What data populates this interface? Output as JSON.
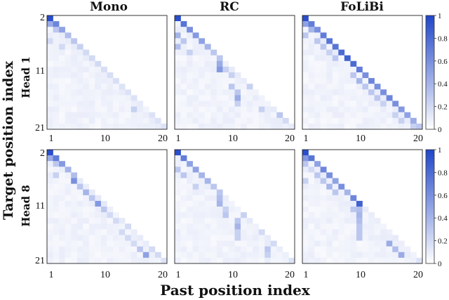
{
  "chart_data": {
    "type": "heatmap",
    "columns": [
      "Mono",
      "RC",
      "FoLiBi"
    ],
    "rows": [
      "Head 1",
      "Head 8"
    ],
    "ylabel": "Target position index",
    "xlabel": "Past position index",
    "x_ticks": [
      "1",
      "10",
      "20"
    ],
    "y_ticks": [
      "2",
      "11",
      "21"
    ],
    "x_range": [
      1,
      20
    ],
    "y_range": [
      2,
      21
    ],
    "colorbar": {
      "range": [
        0,
        1
      ],
      "ticks": [
        "0",
        "0.2",
        "0.4",
        "0.6",
        "0.8",
        "1"
      ],
      "low_color": "#ffffff",
      "high_color": "#1f45c8"
    },
    "grid": false,
    "lower_triangular": true,
    "panels": [
      {
        "row": "Head 1",
        "col": "Mono",
        "highlights": [
          [
            2,
            1,
            0.95
          ],
          [
            3,
            1,
            0.45
          ],
          [
            3,
            2,
            0.65
          ],
          [
            4,
            2,
            0.3
          ],
          [
            4,
            3,
            0.5
          ],
          [
            5,
            4,
            0.35
          ],
          [
            6,
            1,
            0.2
          ],
          [
            6,
            5,
            0.3
          ],
          [
            7,
            3,
            0.2
          ],
          [
            7,
            6,
            0.25
          ],
          [
            8,
            7,
            0.2
          ],
          [
            9,
            8,
            0.2
          ],
          [
            10,
            9,
            0.2
          ],
          [
            11,
            10,
            0.18
          ],
          [
            12,
            11,
            0.18
          ],
          [
            13,
            12,
            0.18
          ],
          [
            14,
            13,
            0.15
          ],
          [
            15,
            14,
            0.15
          ],
          [
            16,
            15,
            0.15
          ],
          [
            18,
            15,
            0.25
          ],
          [
            19,
            18,
            0.15
          ],
          [
            20,
            19,
            0.15
          ],
          [
            21,
            20,
            0.15
          ]
        ]
      },
      {
        "row": "Head 1",
        "col": "RC",
        "highlights": [
          [
            2,
            1,
            0.95
          ],
          [
            3,
            2,
            0.75
          ],
          [
            4,
            3,
            0.6
          ],
          [
            5,
            1,
            0.4
          ],
          [
            5,
            4,
            0.55
          ],
          [
            6,
            2,
            0.3
          ],
          [
            6,
            5,
            0.5
          ],
          [
            7,
            1,
            0.35
          ],
          [
            7,
            6,
            0.4
          ],
          [
            8,
            3,
            0.25
          ],
          [
            8,
            7,
            0.3
          ],
          [
            9,
            8,
            0.3
          ],
          [
            10,
            8,
            0.45
          ],
          [
            11,
            8,
            0.55
          ],
          [
            11,
            9,
            0.25
          ],
          [
            12,
            10,
            0.25
          ],
          [
            14,
            10,
            0.3
          ],
          [
            14,
            13,
            0.25
          ],
          [
            15,
            11,
            0.3
          ],
          [
            16,
            11,
            0.45
          ],
          [
            17,
            11,
            0.25
          ],
          [
            18,
            15,
            0.25
          ],
          [
            19,
            18,
            0.3
          ],
          [
            20,
            19,
            0.2
          ]
        ]
      },
      {
        "row": "Head 1",
        "col": "FoLiBi",
        "highlights": [
          [
            2,
            1,
            0.95
          ],
          [
            3,
            1,
            0.5
          ],
          [
            3,
            2,
            0.7
          ],
          [
            4,
            2,
            0.4
          ],
          [
            4,
            3,
            0.6
          ],
          [
            5,
            1,
            0.3
          ],
          [
            5,
            4,
            0.7
          ],
          [
            6,
            3,
            0.3
          ],
          [
            6,
            5,
            0.75
          ],
          [
            7,
            4,
            0.3
          ],
          [
            7,
            6,
            0.75
          ],
          [
            8,
            5,
            0.25
          ],
          [
            8,
            7,
            0.8
          ],
          [
            9,
            6,
            0.3
          ],
          [
            9,
            8,
            0.85
          ],
          [
            10,
            9,
            0.8
          ],
          [
            11,
            10,
            0.7
          ],
          [
            12,
            9,
            0.3
          ],
          [
            12,
            11,
            0.6
          ],
          [
            13,
            10,
            0.4
          ],
          [
            13,
            12,
            0.65
          ],
          [
            14,
            11,
            0.3
          ],
          [
            14,
            13,
            0.6
          ],
          [
            15,
            12,
            0.3
          ],
          [
            15,
            14,
            0.6
          ],
          [
            16,
            13,
            0.3
          ],
          [
            16,
            15,
            0.65
          ],
          [
            17,
            14,
            0.25
          ],
          [
            17,
            16,
            0.6
          ],
          [
            18,
            17,
            0.55
          ],
          [
            19,
            16,
            0.25
          ],
          [
            19,
            18,
            0.5
          ],
          [
            20,
            17,
            0.25
          ],
          [
            20,
            19,
            0.45
          ],
          [
            21,
            19,
            0.25
          ],
          [
            21,
            20,
            0.3
          ]
        ]
      },
      {
        "row": "Head 8",
        "col": "Mono",
        "highlights": [
          [
            2,
            1,
            0.95
          ],
          [
            3,
            1,
            0.45
          ],
          [
            3,
            2,
            0.7
          ],
          [
            4,
            2,
            0.3
          ],
          [
            4,
            3,
            0.55
          ],
          [
            5,
            4,
            0.4
          ],
          [
            6,
            2,
            0.25
          ],
          [
            6,
            5,
            0.35
          ],
          [
            7,
            5,
            0.6
          ],
          [
            8,
            6,
            0.3
          ],
          [
            9,
            7,
            0.4
          ],
          [
            10,
            8,
            0.3
          ],
          [
            11,
            9,
            0.55
          ],
          [
            12,
            10,
            0.3
          ],
          [
            13,
            11,
            0.2
          ],
          [
            14,
            12,
            0.2
          ],
          [
            15,
            14,
            0.2
          ],
          [
            16,
            13,
            0.2
          ],
          [
            17,
            14,
            0.2
          ],
          [
            18,
            15,
            0.2
          ],
          [
            19,
            16,
            0.3
          ],
          [
            19,
            18,
            0.2
          ],
          [
            20,
            17,
            0.5
          ],
          [
            20,
            19,
            0.2
          ],
          [
            21,
            20,
            0.15
          ]
        ]
      },
      {
        "row": "Head 8",
        "col": "RC",
        "highlights": [
          [
            2,
            1,
            0.95
          ],
          [
            3,
            2,
            0.7
          ],
          [
            4,
            3,
            0.5
          ],
          [
            5,
            1,
            0.3
          ],
          [
            5,
            4,
            0.5
          ],
          [
            6,
            2,
            0.3
          ],
          [
            6,
            5,
            0.4
          ],
          [
            7,
            6,
            0.4
          ],
          [
            8,
            4,
            0.25
          ],
          [
            8,
            7,
            0.3
          ],
          [
            9,
            8,
            0.3
          ],
          [
            10,
            8,
            0.35
          ],
          [
            11,
            8,
            0.4
          ],
          [
            12,
            9,
            0.25
          ],
          [
            13,
            9,
            0.3
          ],
          [
            13,
            12,
            0.25
          ],
          [
            14,
            11,
            0.3
          ],
          [
            15,
            11,
            0.4
          ],
          [
            16,
            11,
            0.25
          ],
          [
            16,
            15,
            0.2
          ],
          [
            17,
            11,
            0.25
          ],
          [
            18,
            17,
            0.2
          ],
          [
            19,
            16,
            0.3
          ],
          [
            20,
            16,
            0.25
          ],
          [
            21,
            20,
            0.15
          ]
        ]
      },
      {
        "row": "Head 8",
        "col": "FoLiBi",
        "highlights": [
          [
            2,
            1,
            0.95
          ],
          [
            3,
            1,
            0.55
          ],
          [
            3,
            2,
            0.75
          ],
          [
            4,
            1,
            0.3
          ],
          [
            4,
            3,
            0.5
          ],
          [
            5,
            2,
            0.2
          ],
          [
            5,
            4,
            0.65
          ],
          [
            6,
            3,
            0.3
          ],
          [
            6,
            5,
            0.6
          ],
          [
            7,
            1,
            0.25
          ],
          [
            7,
            4,
            0.3
          ],
          [
            7,
            6,
            0.5
          ],
          [
            8,
            5,
            0.4
          ],
          [
            8,
            7,
            0.6
          ],
          [
            9,
            6,
            0.3
          ],
          [
            9,
            8,
            0.4
          ],
          [
            10,
            9,
            0.65
          ],
          [
            11,
            10,
            0.85
          ],
          [
            12,
            9,
            0.3
          ],
          [
            12,
            10,
            0.35
          ],
          [
            13,
            10,
            0.4
          ],
          [
            14,
            10,
            0.35
          ],
          [
            15,
            10,
            0.3
          ],
          [
            16,
            10,
            0.3
          ],
          [
            17,
            10,
            0.3
          ],
          [
            18,
            15,
            0.45
          ],
          [
            19,
            16,
            0.35
          ],
          [
            20,
            17,
            0.45
          ],
          [
            21,
            20,
            0.15
          ]
        ]
      }
    ]
  }
}
